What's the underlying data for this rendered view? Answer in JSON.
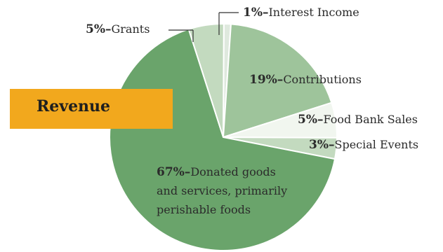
{
  "title": "Revenue",
  "chart_data": {
    "type": "pie",
    "slices": [
      {
        "label": "Interest Income",
        "value": 1,
        "pct_text": "1%–",
        "color": "#dfe9de"
      },
      {
        "label": "Contributions",
        "value": 19,
        "pct_text": "19%–",
        "color": "#9ec49b"
      },
      {
        "label": "Food Bank Sales",
        "value": 5,
        "pct_text": "5%–",
        "color": "#f1f6ef"
      },
      {
        "label": "Special Events",
        "value": 3,
        "pct_text": "3%–",
        "color": "#c3dabf"
      },
      {
        "label": "Donated goods and services, primarily perishable foods",
        "value": 67,
        "pct_text": "67%–",
        "lines": [
          "Donated goods",
          "and services, primarily",
          "perishable foods"
        ],
        "color": "#6aa46b"
      },
      {
        "label": "Grants",
        "value": 5,
        "pct_text": "5%–",
        "color": "#c3dabf"
      }
    ]
  }
}
